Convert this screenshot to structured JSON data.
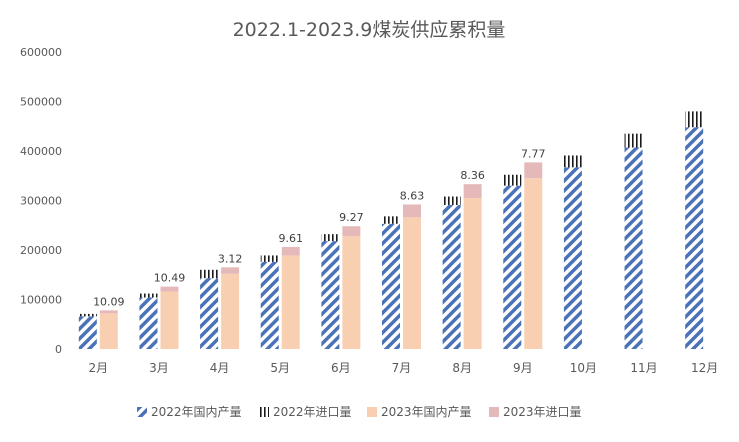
{
  "chart_data": {
    "type": "bar",
    "title": "2022.1-2023.9煤炭供应累积量",
    "categories": [
      "2月",
      "3月",
      "4月",
      "5月",
      "6月",
      "7月",
      "8月",
      "9月",
      "10月",
      "11月",
      "12月"
    ],
    "y_ticks": [
      "0",
      "100000",
      "200000",
      "300000",
      "400000",
      "500000",
      "600000"
    ],
    "ylim": [
      0,
      600000
    ],
    "grid": false,
    "legend_position": "bottom",
    "stacks": [
      {
        "name": "2022",
        "series": [
          {
            "name": "2022年国内产量",
            "color": "#4a72b8",
            "pattern": "diagonal-stripes",
            "values": [
              66000,
              104000,
              143000,
              176000,
              218000,
              253000,
              291000,
              330000,
              367000,
              407000,
              448000
            ]
          },
          {
            "name": "2022年进口量",
            "color": "#1a1a1a",
            "pattern": "vertical-lines",
            "values": [
              5000,
              8000,
              17000,
              13000,
              14000,
              15000,
              17000,
              22000,
              24000,
              28000,
              32000
            ]
          }
        ]
      },
      {
        "name": "2023",
        "series": [
          {
            "name": "2023年国内产量",
            "color": "#f9cfb1",
            "pattern": "solid",
            "values": [
              72000,
              116000,
              152000,
              189000,
              228000,
              266000,
              305000,
              345000,
              null,
              null,
              null
            ]
          },
          {
            "name": "2023年进口量",
            "color": "#e5b9b9",
            "pattern": "solid",
            "values": [
              6000,
              10000,
              13000,
              17000,
              20000,
              26000,
              28000,
              32000,
              null,
              null,
              null
            ]
          }
        ]
      }
    ],
    "annotations": [
      "10.09",
      "10.49",
      "3.12",
      "9.61",
      "9.27",
      "8.63",
      "8.36",
      "7.77"
    ]
  }
}
